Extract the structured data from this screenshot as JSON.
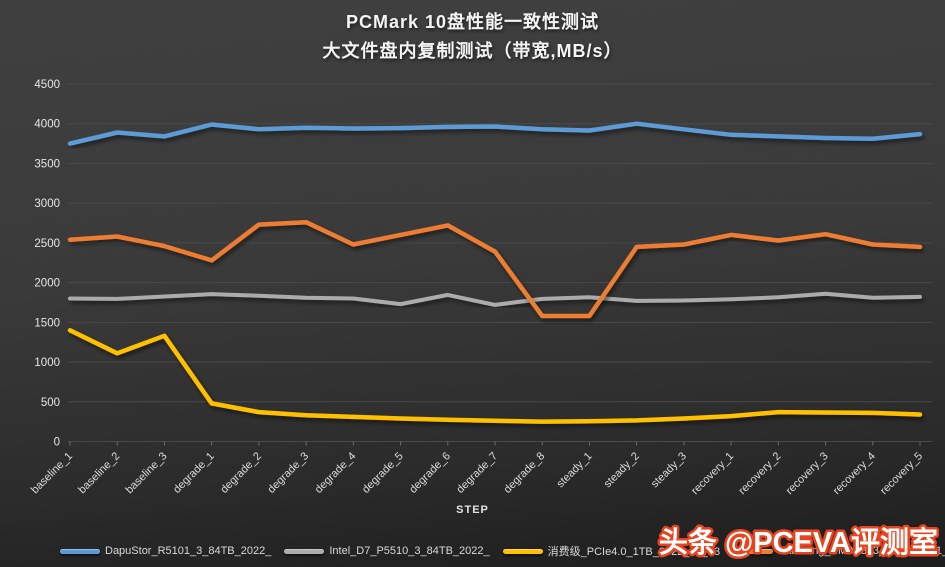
{
  "title": {
    "line1": "PCMark 10盘性能一致性测试",
    "line2": "大文件盘内复制测试（带宽,MB/s）"
  },
  "watermark": "头条 @PCEVA评测室",
  "watermark_colors": {
    "fill": "#ffffff",
    "outline": "#e8441f"
  },
  "axis_text_color": "#e6e6e6",
  "grid_color": "#4a4a4a",
  "chart_data": {
    "type": "line",
    "title": "PCMark 10盘性能一致性测试 大文件盘内复制测试（带宽,MB/s）",
    "xlabel": "STEP",
    "ylabel": "",
    "ylim": [
      0,
      4500
    ],
    "ytick_step": 500,
    "grid": true,
    "legend_position": "bottom",
    "categories": [
      "baseline_1",
      "baseline_2",
      "baseline_3",
      "degrade_1",
      "degrade_2",
      "degrade_3",
      "degrade_4",
      "degrade_5",
      "degrade_6",
      "degrade_7",
      "degrade_8",
      "steady_1",
      "steady_2",
      "steady_3",
      "recovery_1",
      "recovery_2",
      "recovery_3",
      "recovery_4",
      "recovery_5"
    ],
    "series": [
      {
        "name": "DapuStor_R5101_3_84TB_2022_",
        "color": "#5b9bd5",
        "width": 4.5,
        "values": [
          3750,
          3890,
          3840,
          3990,
          3930,
          3950,
          3940,
          3945,
          3960,
          3965,
          3930,
          3915,
          4000,
          3930,
          3860,
          3840,
          3820,
          3810,
          3870
        ]
      },
      {
        "name": "Intel_D7_P5510_3_84TB_2022_",
        "color": "#ababab",
        "width": 4,
        "values": [
          1800,
          1795,
          1825,
          1855,
          1835,
          1810,
          1800,
          1730,
          1845,
          1720,
          1795,
          1815,
          1770,
          1775,
          1790,
          1815,
          1860,
          1810,
          1820
        ]
      },
      {
        "name": "消费级_PCIe4.0_1TB_2022_03_13",
        "color": "#ffc000",
        "width": 4.5,
        "values": [
          1400,
          1110,
          1330,
          480,
          370,
          330,
          310,
          290,
          275,
          260,
          250,
          255,
          265,
          290,
          320,
          370,
          365,
          360,
          340
        ]
      },
      {
        "name": "Samsung_PM9A3_3_84TB_2021_0",
        "color": "#ed7d31",
        "width": 4.5,
        "values": [
          2540,
          2580,
          2460,
          2280,
          2730,
          2760,
          2480,
          2600,
          2720,
          2390,
          1580,
          1580,
          2450,
          2480,
          2600,
          2530,
          2610,
          2480,
          2450
        ]
      }
    ]
  }
}
